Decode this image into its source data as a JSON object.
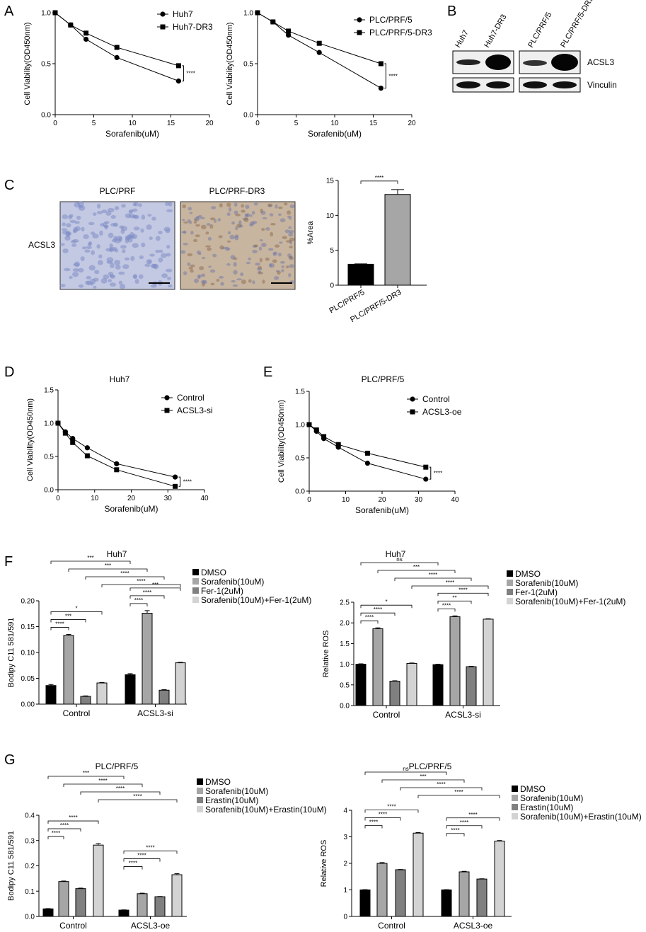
{
  "panel_letters": {
    "A": "A",
    "B": "B",
    "C": "C",
    "D": "D",
    "E": "E",
    "F": "F",
    "G": "G"
  },
  "colors": {
    "black": "#000000",
    "gray_dark": "#808080",
    "gray_mid": "#999999",
    "gray_light": "#d3d3d3",
    "gray_bar": "#a6a6a6",
    "blot_bg": "#efefef",
    "tissue_blue": "#c3c9e2",
    "tissue_brown": "#c8b59f"
  },
  "blot": {
    "lanes": [
      "Huh7",
      "Huh7-DR3",
      "PLC/PRF/5",
      "PLC/PRF/5-DR3"
    ],
    "bands": [
      "ACSL3",
      "Vinculin"
    ]
  },
  "ihc": {
    "row_label": "ACSL3",
    "titles": [
      "PLC/PRF",
      "PLC/PRF-DR3"
    ]
  },
  "chart_data": [
    {
      "id": "A1",
      "type": "line",
      "title": "",
      "xlabel": "Sorafenib(uM)",
      "ylabel": "Cell Viability(OD450nm)",
      "xlim": [
        0,
        20
      ],
      "ylim": [
        0,
        1.0
      ],
      "xticks": [
        "0",
        "5",
        "10",
        "15",
        "20"
      ],
      "yticks": [
        "0.0",
        "0.5",
        "1.0"
      ],
      "series": [
        {
          "name": "Huh7",
          "marker": "circle",
          "x": [
            0,
            2,
            4,
            8,
            16
          ],
          "y": [
            1.0,
            0.88,
            0.74,
            0.56,
            0.33
          ]
        },
        {
          "name": "Huh7-DR3",
          "marker": "square",
          "x": [
            0,
            2,
            4,
            8,
            16
          ],
          "y": [
            1.0,
            0.88,
            0.8,
            0.66,
            0.48
          ]
        }
      ],
      "significance": "****",
      "legend": "top-right"
    },
    {
      "id": "A2",
      "type": "line",
      "title": "",
      "xlabel": "Sorafenib(uM)",
      "ylabel": "Cell Viability(OD450nm)",
      "xlim": [
        0,
        20
      ],
      "ylim": [
        0,
        1.0
      ],
      "xticks": [
        "0",
        "5",
        "10",
        "15",
        "20"
      ],
      "yticks": [
        "0.0",
        "0.5",
        "1.0"
      ],
      "series": [
        {
          "name": "PLC/PRF/5",
          "marker": "circle",
          "x": [
            0,
            2,
            4,
            8,
            16
          ],
          "y": [
            1.0,
            0.91,
            0.78,
            0.61,
            0.26
          ]
        },
        {
          "name": "PLC/PRF/5-DR3",
          "marker": "square",
          "x": [
            0,
            2,
            4,
            8,
            16
          ],
          "y": [
            1.0,
            0.91,
            0.82,
            0.7,
            0.5
          ]
        }
      ],
      "significance": "****",
      "legend": "top-right"
    },
    {
      "id": "C",
      "type": "bar",
      "title": "",
      "xlabel": "",
      "ylabel": "%Area",
      "ylim": [
        0,
        15
      ],
      "yticks": [
        "0",
        "5",
        "10",
        "15"
      ],
      "categories": [
        "PLC/PRF/5",
        "PLC/PRF/5-DR3"
      ],
      "values": [
        3.0,
        13.0
      ],
      "errors": [
        0.05,
        0.7
      ],
      "bar_colors": [
        "#000000",
        "#a6a6a6"
      ],
      "significance": [
        {
          "from": 0,
          "to": 1,
          "label": "****"
        }
      ]
    },
    {
      "id": "D",
      "type": "line",
      "title": "Huh7",
      "xlabel": "Sorafenib(uM)",
      "ylabel": "Cell Viability(OD450nm)",
      "xlim": [
        0,
        40
      ],
      "ylim": [
        0,
        1.5
      ],
      "xticks": [
        "0",
        "10",
        "20",
        "30",
        "40"
      ],
      "yticks": [
        "0.0",
        "0.5",
        "1.0",
        "1.5"
      ],
      "series": [
        {
          "name": "Control",
          "marker": "circle",
          "x": [
            0,
            2,
            4,
            8,
            16,
            32
          ],
          "y": [
            1.0,
            0.87,
            0.77,
            0.63,
            0.39,
            0.19
          ]
        },
        {
          "name": "ACSL3-si",
          "marker": "square",
          "x": [
            0,
            2,
            4,
            8,
            16,
            32
          ],
          "y": [
            1.0,
            0.85,
            0.71,
            0.51,
            0.3,
            0.05
          ]
        }
      ],
      "significance": "****",
      "legend": "top-right"
    },
    {
      "id": "E",
      "type": "line",
      "title": "PLC/PRF/5",
      "xlabel": "Sorafenib(uM)",
      "ylabel": "Cell Viability(OD450nm)",
      "xlim": [
        0,
        40
      ],
      "ylim": [
        0,
        1.5
      ],
      "xticks": [
        "0",
        "10",
        "20",
        "30",
        "40"
      ],
      "yticks": [
        "0.0",
        "0.5",
        "1.0",
        "1.5"
      ],
      "series": [
        {
          "name": "Control",
          "marker": "circle",
          "x": [
            0,
            2,
            4,
            8,
            16,
            32
          ],
          "y": [
            1.0,
            0.9,
            0.79,
            0.66,
            0.42,
            0.18
          ]
        },
        {
          "name": "ACSL3-oe",
          "marker": "square",
          "x": [
            0,
            2,
            4,
            8,
            16,
            32
          ],
          "y": [
            1.0,
            0.92,
            0.82,
            0.7,
            0.57,
            0.36
          ]
        }
      ],
      "significance": "****",
      "legend": "top-right"
    },
    {
      "id": "F1",
      "type": "bar",
      "title": "Huh7",
      "xlabel": "",
      "ylabel": "Bodipy C11 581/591",
      "ylim": [
        0,
        0.2
      ],
      "yticks": [
        "0.00",
        "0.05",
        "0.10",
        "0.15",
        "0.20"
      ],
      "categories": [
        "Control",
        "ACSL3-si"
      ],
      "series": [
        {
          "name": "DMSO",
          "color": "#000000",
          "values": [
            0.036,
            0.057
          ],
          "errors": [
            0.002,
            0.002
          ]
        },
        {
          "name": "Sorafenib(10uM)",
          "color": "#a6a6a6",
          "values": [
            0.133,
            0.176
          ],
          "errors": [
            0.002,
            0.005
          ]
        },
        {
          "name": "Fer-1(2uM)",
          "color": "#808080",
          "values": [
            0.015,
            0.027
          ],
          "errors": [
            0.001,
            0.001
          ]
        },
        {
          "name": "Sorafenib(10uM)+Fer-1(2uM)",
          "color": "#d3d3d3",
          "values": [
            0.041,
            0.08
          ],
          "errors": [
            0.001,
            0.001
          ]
        }
      ],
      "significance": [
        {
          "from": [
            0,
            0
          ],
          "to": [
            0,
            1
          ],
          "label": "****"
        },
        {
          "from": [
            0,
            0
          ],
          "to": [
            0,
            2
          ],
          "label": "***"
        },
        {
          "from": [
            0,
            0
          ],
          "to": [
            0,
            3
          ],
          "label": "*"
        },
        {
          "from": [
            1,
            0
          ],
          "to": [
            1,
            1
          ],
          "label": "****"
        },
        {
          "from": [
            1,
            0
          ],
          "to": [
            1,
            2
          ],
          "label": "****"
        },
        {
          "from": [
            1,
            0
          ],
          "to": [
            1,
            3
          ],
          "label": "***"
        },
        {
          "from": [
            0,
            0
          ],
          "to": [
            1,
            0
          ],
          "label": "***"
        },
        {
          "from": [
            0,
            1
          ],
          "to": [
            1,
            1
          ],
          "label": "***"
        },
        {
          "from": [
            0,
            2
          ],
          "to": [
            1,
            2
          ],
          "label": "****"
        },
        {
          "from": [
            0,
            3
          ],
          "to": [
            1,
            3
          ],
          "label": "****"
        }
      ],
      "legend": "top-right"
    },
    {
      "id": "F2",
      "type": "bar",
      "title": "Huh7",
      "xlabel": "",
      "ylabel": "Relative ROS",
      "ylim": [
        0,
        2.5
      ],
      "yticks": [
        "0.0",
        "0.5",
        "1.0",
        "1.5",
        "2.0",
        "2.5"
      ],
      "categories": [
        "Control",
        "ACSL3-si"
      ],
      "series": [
        {
          "name": "DMSO",
          "color": "#000000",
          "values": [
            1.0,
            0.99
          ],
          "errors": [
            0.01,
            0.01
          ]
        },
        {
          "name": "Sorafenib(10uM)",
          "color": "#a6a6a6",
          "values": [
            1.86,
            2.15
          ],
          "errors": [
            0.02,
            0.02
          ]
        },
        {
          "name": "Fer-1(2uM)",
          "color": "#808080",
          "values": [
            0.59,
            0.94
          ],
          "errors": [
            0.01,
            0.01
          ]
        },
        {
          "name": "Sorafenib(10uM)+Fer-1(2uM)",
          "color": "#d3d3d3",
          "values": [
            1.02,
            2.09
          ],
          "errors": [
            0.01,
            0.01
          ]
        }
      ],
      "significance": [
        {
          "from": [
            0,
            0
          ],
          "to": [
            0,
            1
          ],
          "label": "****"
        },
        {
          "from": [
            0,
            0
          ],
          "to": [
            0,
            2
          ],
          "label": "****"
        },
        {
          "from": [
            0,
            0
          ],
          "to": [
            0,
            3
          ],
          "label": "*"
        },
        {
          "from": [
            1,
            0
          ],
          "to": [
            1,
            1
          ],
          "label": "****"
        },
        {
          "from": [
            1,
            0
          ],
          "to": [
            1,
            2
          ],
          "label": "**"
        },
        {
          "from": [
            1,
            0
          ],
          "to": [
            1,
            3
          ],
          "label": "****"
        },
        {
          "from": [
            0,
            0
          ],
          "to": [
            1,
            0
          ],
          "label": "ns"
        },
        {
          "from": [
            0,
            1
          ],
          "to": [
            1,
            1
          ],
          "label": "***"
        },
        {
          "from": [
            0,
            2
          ],
          "to": [
            1,
            2
          ],
          "label": "****"
        },
        {
          "from": [
            0,
            3
          ],
          "to": [
            1,
            3
          ],
          "label": "****"
        }
      ],
      "legend": "top-right"
    },
    {
      "id": "G1",
      "type": "bar",
      "title": "PLC/PRF/5",
      "xlabel": "",
      "ylabel": "Bodipy C11 581/591",
      "ylim": [
        0,
        0.4
      ],
      "yticks": [
        "0.0",
        "0.1",
        "0.2",
        "0.3",
        "0.4"
      ],
      "categories": [
        "Control",
        "ACSL3-oe"
      ],
      "series": [
        {
          "name": "DMSO",
          "color": "#000000",
          "values": [
            0.03,
            0.025
          ],
          "errors": [
            0.001,
            0.001
          ]
        },
        {
          "name": "Sorafenib(10uM)",
          "color": "#a6a6a6",
          "values": [
            0.138,
            0.09
          ],
          "errors": [
            0.002,
            0.002
          ]
        },
        {
          "name": "Erastin(10uM)",
          "color": "#808080",
          "values": [
            0.11,
            0.078
          ],
          "errors": [
            0.002,
            0.001
          ]
        },
        {
          "name": "Sorafenib(10uM)+Erastin(10uM)",
          "color": "#d3d3d3",
          "values": [
            0.282,
            0.165
          ],
          "errors": [
            0.006,
            0.004
          ]
        }
      ],
      "significance": [
        {
          "from": [
            0,
            0
          ],
          "to": [
            0,
            1
          ],
          "label": "****"
        },
        {
          "from": [
            0,
            0
          ],
          "to": [
            0,
            2
          ],
          "label": "****"
        },
        {
          "from": [
            0,
            0
          ],
          "to": [
            0,
            3
          ],
          "label": "****"
        },
        {
          "from": [
            1,
            0
          ],
          "to": [
            1,
            1
          ],
          "label": "****"
        },
        {
          "from": [
            1,
            0
          ],
          "to": [
            1,
            2
          ],
          "label": "****"
        },
        {
          "from": [
            1,
            0
          ],
          "to": [
            1,
            3
          ],
          "label": "****"
        },
        {
          "from": [
            0,
            0
          ],
          "to": [
            1,
            0
          ],
          "label": "***"
        },
        {
          "from": [
            0,
            1
          ],
          "to": [
            1,
            1
          ],
          "label": "****"
        },
        {
          "from": [
            0,
            2
          ],
          "to": [
            1,
            2
          ],
          "label": "****"
        },
        {
          "from": [
            0,
            3
          ],
          "to": [
            1,
            3
          ],
          "label": "****"
        }
      ],
      "legend": "top-right"
    },
    {
      "id": "G2",
      "type": "bar",
      "title": "PLC/PRF/5",
      "xlabel": "",
      "ylabel": "Relative ROS",
      "ylim": [
        0,
        4
      ],
      "yticks": [
        "0",
        "1",
        "2",
        "3",
        "4"
      ],
      "categories": [
        "Control",
        "ACSL3-oe"
      ],
      "series": [
        {
          "name": "DMSO",
          "color": "#000000",
          "values": [
            1.0,
            1.0
          ],
          "errors": [
            0.01,
            0.01
          ]
        },
        {
          "name": "Sorafenib(10uM)",
          "color": "#a6a6a6",
          "values": [
            2.0,
            1.68
          ],
          "errors": [
            0.03,
            0.02
          ]
        },
        {
          "name": "Erastin(10uM)",
          "color": "#808080",
          "values": [
            1.76,
            1.41
          ],
          "errors": [
            0.01,
            0.01
          ]
        },
        {
          "name": "Sorafenib(10uM)+Erastin(10uM)",
          "color": "#d3d3d3",
          "values": [
            3.14,
            2.84
          ],
          "errors": [
            0.02,
            0.02
          ]
        }
      ],
      "significance": [
        {
          "from": [
            0,
            0
          ],
          "to": [
            0,
            1
          ],
          "label": "****"
        },
        {
          "from": [
            0,
            0
          ],
          "to": [
            0,
            2
          ],
          "label": "****"
        },
        {
          "from": [
            0,
            0
          ],
          "to": [
            0,
            3
          ],
          "label": "****"
        },
        {
          "from": [
            1,
            0
          ],
          "to": [
            1,
            1
          ],
          "label": "****"
        },
        {
          "from": [
            1,
            0
          ],
          "to": [
            1,
            2
          ],
          "label": "****"
        },
        {
          "from": [
            1,
            0
          ],
          "to": [
            1,
            3
          ],
          "label": "****"
        },
        {
          "from": [
            0,
            0
          ],
          "to": [
            1,
            0
          ],
          "label": "ns"
        },
        {
          "from": [
            0,
            1
          ],
          "to": [
            1,
            1
          ],
          "label": "***"
        },
        {
          "from": [
            0,
            2
          ],
          "to": [
            1,
            2
          ],
          "label": "****"
        },
        {
          "from": [
            0,
            3
          ],
          "to": [
            1,
            3
          ],
          "label": "****"
        }
      ],
      "legend": "top-right"
    }
  ]
}
